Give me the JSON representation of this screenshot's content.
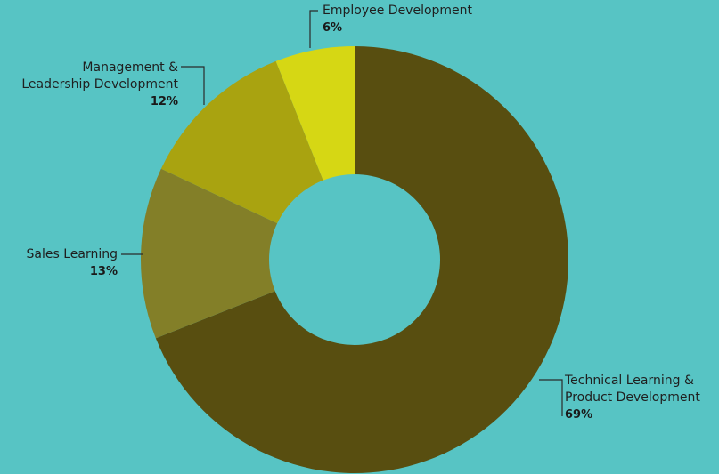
{
  "chart_data": {
    "type": "pie",
    "donut": true,
    "categories": [
      "Technical Learning & Product Development",
      "Sales Learning",
      "Management & Leadership Development",
      "Employee Development"
    ],
    "values": [
      69,
      13,
      12,
      6
    ],
    "labels": [
      {
        "name_lines": [
          "Technical Learning &",
          "Product Development"
        ],
        "percent": "69%"
      },
      {
        "name_lines": [
          "Sales Learning"
        ],
        "percent": "13%"
      },
      {
        "name_lines": [
          "Management &",
          "Leadership Development"
        ],
        "percent": "12%"
      },
      {
        "name_lines": [
          "Employee Development"
        ],
        "percent": "6%"
      }
    ],
    "colors": [
      "#584e10",
      "#837f28",
      "#a9a310",
      "#d6d714"
    ],
    "background": "#57c4c4",
    "legend": "none"
  }
}
